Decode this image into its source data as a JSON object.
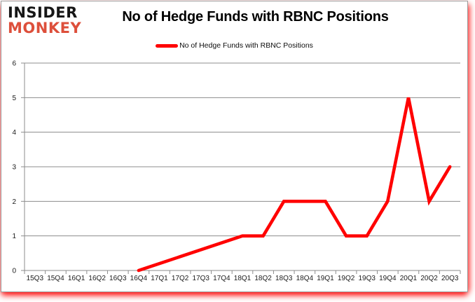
{
  "logo": {
    "line1": "INSIDER",
    "line2": "MONKEY"
  },
  "legend": {
    "swatch": "red-line-swatch"
  },
  "chart_data": {
    "type": "line",
    "title": "No of Hedge Funds with RBNC Positions",
    "xlabel": "",
    "ylabel": "",
    "categories": [
      "15Q3",
      "15Q4",
      "16Q1",
      "16Q2",
      "16Q3",
      "16Q4",
      "17Q1",
      "17Q2",
      "17Q3",
      "17Q4",
      "18Q1",
      "18Q2",
      "18Q3",
      "18Q4",
      "19Q1",
      "19Q2",
      "19Q3",
      "19Q4",
      "20Q1",
      "20Q2",
      "20Q3"
    ],
    "series": [
      {
        "name": "No of Hedge Funds with RBNC Positions",
        "color": "#ff0000",
        "values": [
          null,
          null,
          null,
          null,
          null,
          0,
          null,
          null,
          null,
          null,
          1,
          1,
          2,
          2,
          2,
          1,
          1,
          2,
          5,
          2,
          3
        ]
      }
    ],
    "ylim": [
      0,
      6
    ],
    "y_ticks": [
      0,
      1,
      2,
      3,
      4,
      5,
      6
    ],
    "grid": true,
    "legend_position": "top-center",
    "gaps_connected": true
  },
  "colors": {
    "line_red": "#ff0000",
    "monkey_red": "#dd4f3b",
    "grid": "#8c8c8c",
    "axis": "#8c8c8c",
    "tick_text": "#1a1a1a",
    "frame_border": "#9b9b9b",
    "glow": "#ff0000",
    "background": "#ffffff"
  }
}
